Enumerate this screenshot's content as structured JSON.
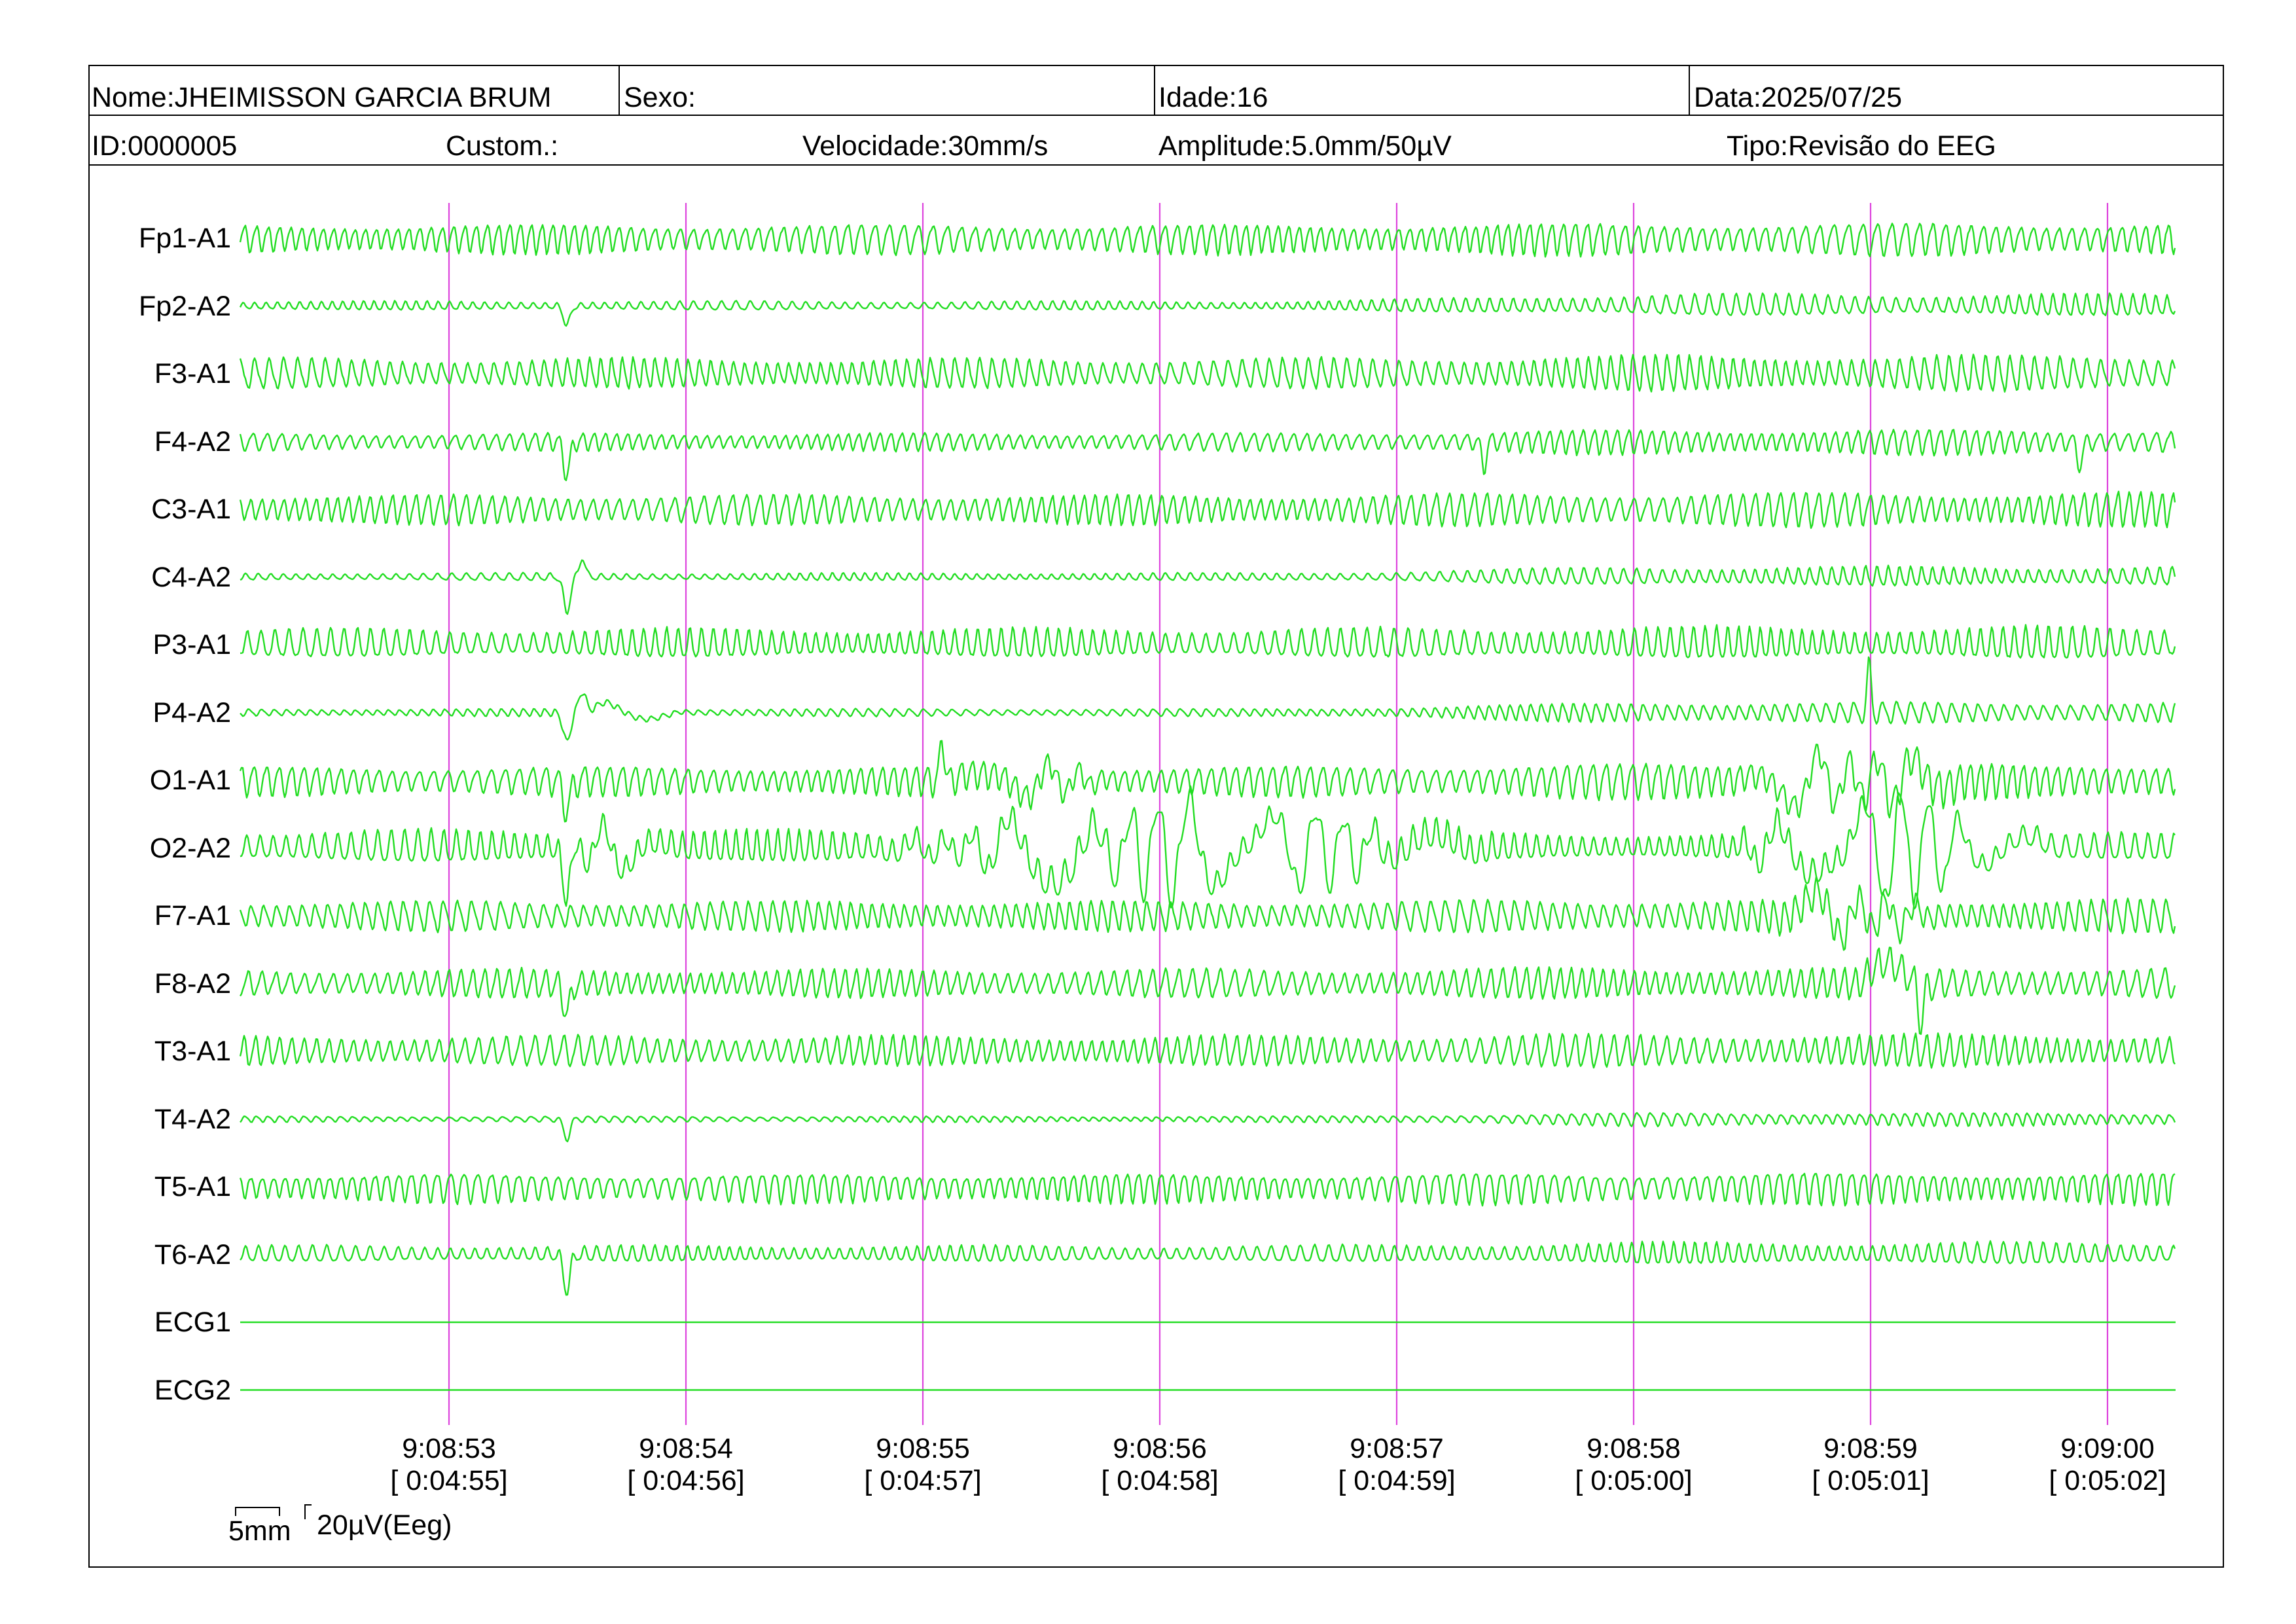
{
  "header": {
    "name": "Nome:JHEIMISSON GARCIA BRUM",
    "sex": "Sexo:",
    "age": "Idade:16",
    "date": "Data:2025/07/25",
    "id": "ID:0000005",
    "custom": "Custom.:",
    "speed": "Velocidade:30mm/s",
    "amplitude": "Amplitude:5.0mm/50µV",
    "type": "Tipo:Revisão do EEG"
  },
  "channels": [
    "Fp1-A1",
    "Fp2-A2",
    "F3-A1",
    "F4-A2",
    "C3-A1",
    "C4-A2",
    "P3-A1",
    "P4-A2",
    "O1-A1",
    "O2-A2",
    "F7-A1",
    "F8-A2",
    "T3-A1",
    "T4-A2",
    "T5-A1",
    "T6-A2",
    "ECG1",
    "ECG2"
  ],
  "time_marks": [
    {
      "clock": "9:08:53",
      "elapsed": "[ 0:04:55]"
    },
    {
      "clock": "9:08:54",
      "elapsed": "[ 0:04:56]"
    },
    {
      "clock": "9:08:55",
      "elapsed": "[ 0:04:57]"
    },
    {
      "clock": "9:08:56",
      "elapsed": "[ 0:04:58]"
    },
    {
      "clock": "9:08:57",
      "elapsed": "[ 0:04:59]"
    },
    {
      "clock": "9:08:58",
      "elapsed": "[ 0:05:00]"
    },
    {
      "clock": "9:08:59",
      "elapsed": "[ 0:05:01]"
    },
    {
      "clock": "9:09:00",
      "elapsed": "[ 0:05:02]"
    }
  ],
  "scale": {
    "time": "5mm",
    "amplitude": "20µV(Eeg)"
  },
  "colors": {
    "trace": "#22dd22",
    "second_marker": "#dd44dd",
    "text": "#000000"
  }
}
